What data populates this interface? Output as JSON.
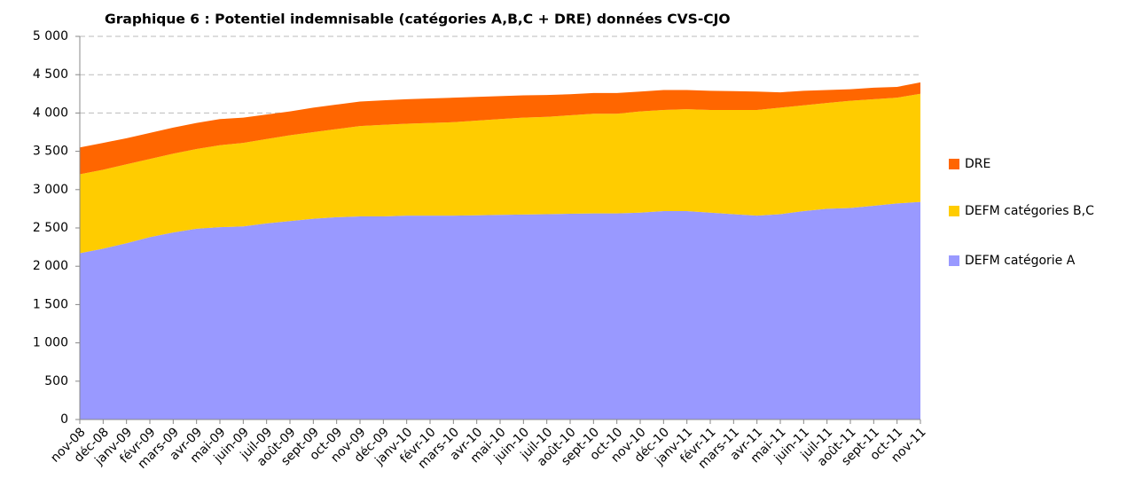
{
  "chart_data": {
    "type": "stacked_area",
    "title": "Graphique 6 : Potentiel indemnisable (catégories A,B,C + DRE) données CVS-CJO",
    "categories": [
      "nov-08",
      "déc-08",
      "janv-09",
      "févr-09",
      "mars-09",
      "avr-09",
      "mai-09",
      "juin-09",
      "juil-09",
      "août-09",
      "sept-09",
      "oct-09",
      "nov-09",
      "déc-09",
      "janv-10",
      "févr-10",
      "mars-10",
      "avr-10",
      "mai-10",
      "juin-10",
      "juil-10",
      "août-10",
      "sept-10",
      "oct-10",
      "nov-10",
      "déc-10",
      "janv-11",
      "févr-11",
      "mars-11",
      "avr-11",
      "mai-11",
      "juin-11",
      "juil-11",
      "août-11",
      "sept-11",
      "oct-11",
      "nov-11"
    ],
    "series": [
      {
        "name": "DEFM catégorie A",
        "color": "#9999ff",
        "values": [
          2170,
          2230,
          2300,
          2380,
          2440,
          2490,
          2510,
          2520,
          2560,
          2590,
          2620,
          2640,
          2650,
          2650,
          2660,
          2660,
          2660,
          2665,
          2670,
          2675,
          2680,
          2685,
          2690,
          2690,
          2700,
          2720,
          2720,
          2700,
          2680,
          2660,
          2680,
          2720,
          2750,
          2760,
          2790,
          2820,
          2840
        ]
      },
      {
        "name": "DEFM catégories B,C",
        "color": "#ffcc00",
        "values": [
          1030,
          1030,
          1030,
          1020,
          1030,
          1040,
          1070,
          1090,
          1100,
          1120,
          1130,
          1150,
          1180,
          1195,
          1200,
          1210,
          1220,
          1235,
          1250,
          1265,
          1270,
          1285,
          1300,
          1300,
          1320,
          1320,
          1330,
          1340,
          1360,
          1380,
          1390,
          1380,
          1380,
          1400,
          1390,
          1380,
          1410
        ]
      },
      {
        "name": "DRE",
        "color": "#ff6600",
        "values": [
          350,
          350,
          340,
          340,
          340,
          340,
          340,
          330,
          320,
          310,
          320,
          320,
          320,
          320,
          320,
          320,
          320,
          310,
          300,
          290,
          285,
          275,
          270,
          270,
          260,
          260,
          250,
          250,
          245,
          240,
          200,
          190,
          170,
          150,
          150,
          140,
          150
        ]
      }
    ],
    "ylim": [
      0,
      5000
    ],
    "yticks": [
      0,
      500,
      {
        "value": 1000,
        "label": "1 000"
      },
      {
        "value": 1500,
        "label": "1 500"
      },
      {
        "value": 2000,
        "label": "2 000"
      },
      {
        "value": 2500,
        "label": "2 500"
      },
      {
        "value": 3000,
        "label": "3 000"
      },
      {
        "value": 3500,
        "label": "3 500"
      },
      {
        "value": 4000,
        "label": "4 000"
      },
      {
        "value": 4500,
        "label": "4 500"
      },
      {
        "value": 5000,
        "label": "5 000"
      }
    ],
    "grid": true,
    "legend": "right"
  }
}
